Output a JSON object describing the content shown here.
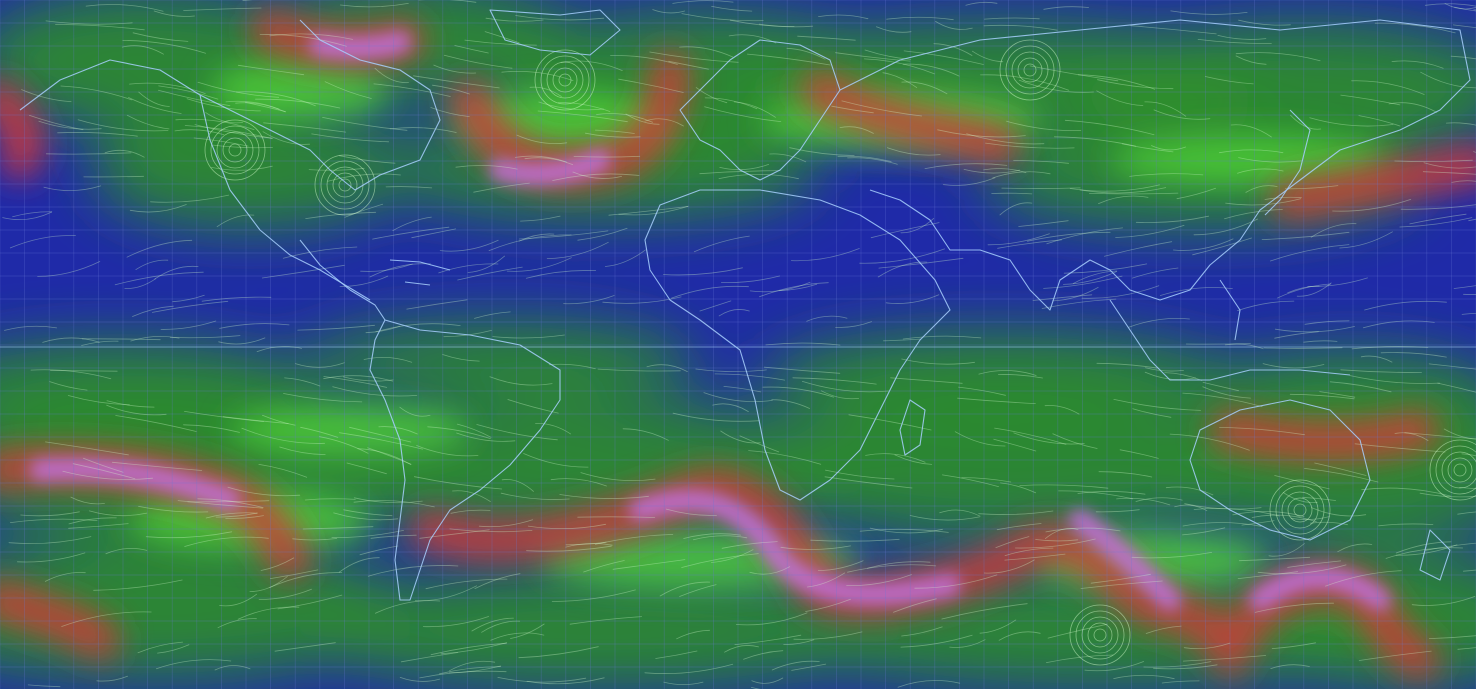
{
  "map": {
    "projection": "equirectangular",
    "layer": "wind-speed-streamlines",
    "graticule": true,
    "colors": {
      "calm": "#1f2aa8",
      "light": "#2f8f2a",
      "moderate": "#4fcf3a",
      "strong": "#d23a3a",
      "jet": "#c070d8",
      "streamline": "#d8ffd0",
      "coastline": "#a8d0ff",
      "grid": "#6a78d8"
    }
  }
}
